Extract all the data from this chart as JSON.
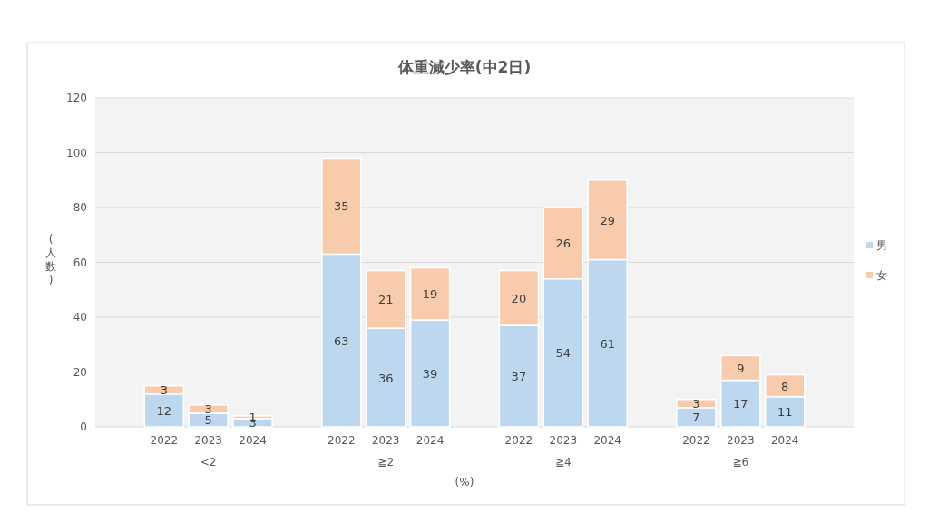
{
  "chart_data": {
    "type": "bar",
    "title": "体重減少率(中2日)",
    "ylabel": "(人数)",
    "xlabel": "(%)",
    "categories": [
      "2022",
      "2023",
      "2024",
      null,
      "2022",
      "2023",
      "2024",
      null,
      "2022",
      "2023",
      "2024",
      null,
      "2022",
      "2023",
      "2024"
    ],
    "series": [
      {
        "name": "男",
        "color": "#bdd7ee",
        "values": [
          12,
          5,
          3,
          null,
          63,
          36,
          39,
          null,
          37,
          54,
          61,
          null,
          7,
          17,
          11
        ]
      },
      {
        "name": "女",
        "color": "#f8cbad",
        "values": [
          3,
          3,
          1,
          null,
          35,
          21,
          19,
          null,
          20,
          26,
          29,
          null,
          3,
          9,
          8
        ]
      }
    ],
    "stacked": true,
    "ylim": [
      0,
      120
    ],
    "yticks": [
      0,
      20,
      40,
      60,
      80,
      100,
      120
    ],
    "grid": "y",
    "legend": "right",
    "data_labels": true,
    "annotations": [
      "<2",
      "≧2",
      "≧4",
      "≧6"
    ]
  }
}
